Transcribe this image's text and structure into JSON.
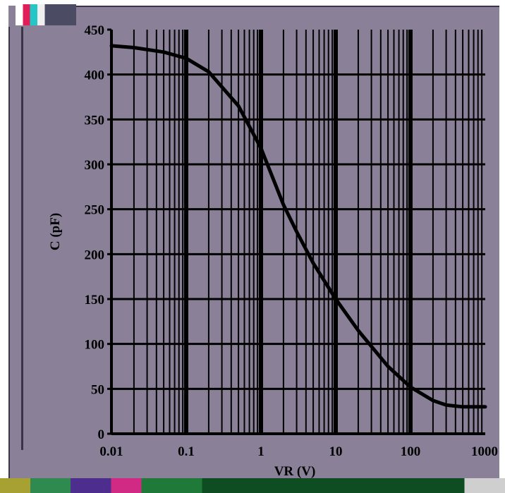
{
  "chart_data": {
    "type": "line",
    "title": "",
    "xlabel": "VR (V)",
    "ylabel": "C (pF)",
    "x_scale": "log",
    "xlim": [
      0.01,
      1000
    ],
    "ylim": [
      0,
      450
    ],
    "x_ticks": [
      "0.01",
      "0.1",
      "1",
      "10",
      "100",
      "1000"
    ],
    "y_ticks": [
      "0",
      "50",
      "100",
      "150",
      "200",
      "250",
      "300",
      "350",
      "400",
      "450"
    ],
    "grid": true,
    "series": [
      {
        "x": [
          0.01,
          0.02,
          0.05,
          0.1,
          0.2,
          0.5,
          1,
          2,
          3,
          5,
          10,
          20,
          50,
          100,
          200,
          300,
          500,
          1000
        ],
        "y": [
          432,
          430,
          425,
          418,
          403,
          365,
          318,
          255,
          225,
          190,
          150,
          115,
          75,
          52,
          37,
          32,
          30,
          30
        ]
      }
    ],
    "colors": {
      "plot_background": "#8a8198",
      "grid": "#000000",
      "curve": "#000000"
    }
  }
}
